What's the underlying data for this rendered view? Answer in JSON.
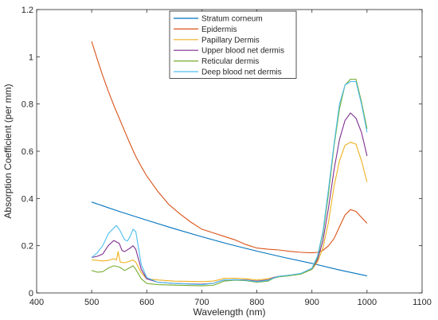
{
  "chart_data": {
    "type": "line",
    "title": "",
    "xlabel": "Wavelength (nm)",
    "ylabel": "Absorption Coefficient (per mm)",
    "xlim": [
      400,
      1100
    ],
    "ylim": [
      0,
      1.2
    ],
    "xticks": [
      "400",
      "500",
      "600",
      "700",
      "800",
      "900",
      "1000",
      "1100"
    ],
    "yticks": [
      "0",
      "0.2",
      "0.4",
      "0.6",
      "0.8",
      "1",
      "1.2"
    ],
    "grid": false,
    "legend_position": "top-center",
    "series": [
      {
        "name": "Stratum corneum",
        "color": "#0072BD",
        "points": [
          [
            500,
            0.385
          ],
          [
            550,
            0.345
          ],
          [
            600,
            0.308
          ],
          [
            650,
            0.272
          ],
          [
            700,
            0.238
          ],
          [
            750,
            0.206
          ],
          [
            800,
            0.177
          ],
          [
            850,
            0.15
          ],
          [
            900,
            0.125
          ],
          [
            950,
            0.097
          ],
          [
            1000,
            0.072
          ]
        ]
      },
      {
        "name": "Epidermis",
        "color": "#D95319",
        "points": [
          [
            500,
            1.065
          ],
          [
            510,
            0.99
          ],
          [
            520,
            0.92
          ],
          [
            530,
            0.855
          ],
          [
            540,
            0.795
          ],
          [
            550,
            0.74
          ],
          [
            560,
            0.685
          ],
          [
            570,
            0.63
          ],
          [
            580,
            0.578
          ],
          [
            590,
            0.535
          ],
          [
            600,
            0.495
          ],
          [
            620,
            0.43
          ],
          [
            640,
            0.375
          ],
          [
            660,
            0.335
          ],
          [
            680,
            0.3
          ],
          [
            700,
            0.27
          ],
          [
            720,
            0.255
          ],
          [
            740,
            0.24
          ],
          [
            760,
            0.225
          ],
          [
            780,
            0.205
          ],
          [
            800,
            0.19
          ],
          [
            820,
            0.185
          ],
          [
            840,
            0.182
          ],
          [
            860,
            0.176
          ],
          [
            880,
            0.172
          ],
          [
            900,
            0.17
          ],
          [
            910,
            0.172
          ],
          [
            920,
            0.18
          ],
          [
            930,
            0.2
          ],
          [
            940,
            0.23
          ],
          [
            950,
            0.28
          ],
          [
            960,
            0.33
          ],
          [
            970,
            0.353
          ],
          [
            980,
            0.345
          ],
          [
            990,
            0.32
          ],
          [
            1000,
            0.295
          ]
        ]
      },
      {
        "name": "Papillary Dermis",
        "color": "#EDB120",
        "points": [
          [
            500,
            0.14
          ],
          [
            510,
            0.138
          ],
          [
            520,
            0.135
          ],
          [
            530,
            0.138
          ],
          [
            540,
            0.145
          ],
          [
            545,
            0.14
          ],
          [
            548,
            0.175
          ],
          [
            552,
            0.13
          ],
          [
            560,
            0.128
          ],
          [
            570,
            0.135
          ],
          [
            575,
            0.14
          ],
          [
            580,
            0.13
          ],
          [
            590,
            0.085
          ],
          [
            600,
            0.06
          ],
          [
            620,
            0.055
          ],
          [
            650,
            0.05
          ],
          [
            700,
            0.048
          ],
          [
            720,
            0.05
          ],
          [
            730,
            0.055
          ],
          [
            740,
            0.062
          ],
          [
            760,
            0.062
          ],
          [
            780,
            0.06
          ],
          [
            800,
            0.055
          ],
          [
            820,
            0.06
          ],
          [
            830,
            0.065
          ],
          [
            840,
            0.07
          ],
          [
            860,
            0.075
          ],
          [
            880,
            0.08
          ],
          [
            900,
            0.1
          ],
          [
            910,
            0.13
          ],
          [
            920,
            0.19
          ],
          [
            930,
            0.3
          ],
          [
            940,
            0.45
          ],
          [
            950,
            0.56
          ],
          [
            960,
            0.625
          ],
          [
            970,
            0.638
          ],
          [
            980,
            0.63
          ],
          [
            990,
            0.56
          ],
          [
            1000,
            0.47
          ]
        ]
      },
      {
        "name": "Upper blood net dermis",
        "color": "#7E2F8E",
        "points": [
          [
            500,
            0.15
          ],
          [
            510,
            0.155
          ],
          [
            520,
            0.165
          ],
          [
            530,
            0.2
          ],
          [
            540,
            0.222
          ],
          [
            550,
            0.21
          ],
          [
            555,
            0.18
          ],
          [
            560,
            0.175
          ],
          [
            570,
            0.19
          ],
          [
            575,
            0.2
          ],
          [
            580,
            0.185
          ],
          [
            590,
            0.1
          ],
          [
            600,
            0.06
          ],
          [
            620,
            0.045
          ],
          [
            650,
            0.04
          ],
          [
            700,
            0.037
          ],
          [
            720,
            0.04
          ],
          [
            730,
            0.048
          ],
          [
            740,
            0.055
          ],
          [
            760,
            0.056
          ],
          [
            780,
            0.055
          ],
          [
            800,
            0.05
          ],
          [
            820,
            0.055
          ],
          [
            830,
            0.065
          ],
          [
            840,
            0.07
          ],
          [
            860,
            0.075
          ],
          [
            880,
            0.082
          ],
          [
            900,
            0.1
          ],
          [
            910,
            0.14
          ],
          [
            920,
            0.22
          ],
          [
            930,
            0.36
          ],
          [
            940,
            0.52
          ],
          [
            950,
            0.65
          ],
          [
            960,
            0.73
          ],
          [
            970,
            0.762
          ],
          [
            980,
            0.74
          ],
          [
            990,
            0.68
          ],
          [
            1000,
            0.58
          ]
        ]
      },
      {
        "name": "Reticular dermis",
        "color": "#77AC30",
        "points": [
          [
            500,
            0.095
          ],
          [
            510,
            0.088
          ],
          [
            520,
            0.09
          ],
          [
            530,
            0.105
          ],
          [
            540,
            0.115
          ],
          [
            550,
            0.11
          ],
          [
            560,
            0.095
          ],
          [
            570,
            0.108
          ],
          [
            575,
            0.115
          ],
          [
            580,
            0.1
          ],
          [
            590,
            0.06
          ],
          [
            600,
            0.04
          ],
          [
            620,
            0.035
          ],
          [
            650,
            0.033
          ],
          [
            700,
            0.03
          ],
          [
            720,
            0.032
          ],
          [
            730,
            0.04
          ],
          [
            740,
            0.05
          ],
          [
            760,
            0.054
          ],
          [
            780,
            0.052
          ],
          [
            800,
            0.045
          ],
          [
            820,
            0.05
          ],
          [
            830,
            0.062
          ],
          [
            840,
            0.068
          ],
          [
            860,
            0.073
          ],
          [
            880,
            0.08
          ],
          [
            900,
            0.1
          ],
          [
            910,
            0.15
          ],
          [
            920,
            0.25
          ],
          [
            930,
            0.42
          ],
          [
            940,
            0.62
          ],
          [
            950,
            0.78
          ],
          [
            960,
            0.88
          ],
          [
            970,
            0.905
          ],
          [
            980,
            0.905
          ],
          [
            990,
            0.81
          ],
          [
            1000,
            0.695
          ]
        ]
      },
      {
        "name": "Deep blood net dermis",
        "color": "#4DBEEE",
        "points": [
          [
            500,
            0.15
          ],
          [
            510,
            0.17
          ],
          [
            520,
            0.2
          ],
          [
            530,
            0.25
          ],
          [
            540,
            0.275
          ],
          [
            545,
            0.285
          ],
          [
            550,
            0.27
          ],
          [
            560,
            0.225
          ],
          [
            565,
            0.22
          ],
          [
            570,
            0.24
          ],
          [
            575,
            0.27
          ],
          [
            580,
            0.26
          ],
          [
            590,
            0.12
          ],
          [
            600,
            0.065
          ],
          [
            620,
            0.045
          ],
          [
            650,
            0.04
          ],
          [
            700,
            0.035
          ],
          [
            720,
            0.04
          ],
          [
            730,
            0.048
          ],
          [
            740,
            0.055
          ],
          [
            760,
            0.056
          ],
          [
            780,
            0.054
          ],
          [
            800,
            0.048
          ],
          [
            820,
            0.053
          ],
          [
            830,
            0.063
          ],
          [
            840,
            0.07
          ],
          [
            860,
            0.076
          ],
          [
            880,
            0.083
          ],
          [
            900,
            0.105
          ],
          [
            910,
            0.155
          ],
          [
            920,
            0.26
          ],
          [
            930,
            0.44
          ],
          [
            940,
            0.63
          ],
          [
            950,
            0.8
          ],
          [
            960,
            0.88
          ],
          [
            970,
            0.895
          ],
          [
            980,
            0.895
          ],
          [
            990,
            0.8
          ],
          [
            1000,
            0.68
          ]
        ]
      }
    ]
  }
}
